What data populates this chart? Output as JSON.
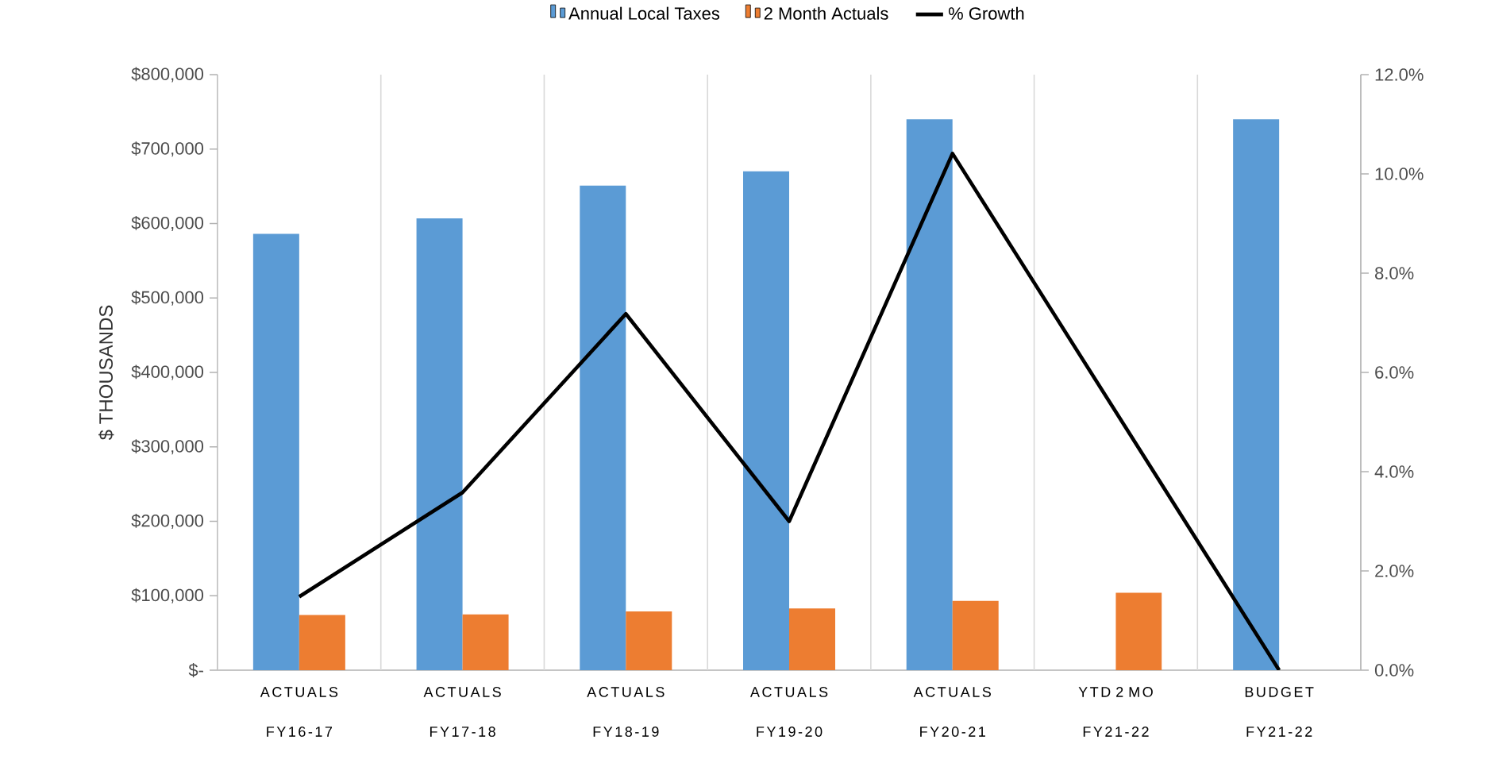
{
  "chart_data": {
    "type": "bar",
    "ylabel": "$ THOUSANDS",
    "categories": [
      "ACTUALS FY16-17",
      "ACTUALS FY17-18",
      "ACTUALS FY18-19",
      "ACTUALS FY19-20",
      "ACTUALS FY20-21",
      "YTD 2 MO FY21-22",
      "BUDGET FY21-22"
    ],
    "series": [
      {
        "name": "Annual Local Taxes",
        "color": "#5b9bd5",
        "values": [
          586000,
          607000,
          651000,
          670000,
          740000,
          null,
          740000
        ]
      },
      {
        "name": "2 Month Actuals",
        "color": "#ed7d31",
        "values": [
          74000,
          75000,
          79000,
          83000,
          93000,
          104000,
          null
        ]
      },
      {
        "name": "% Growth",
        "type": "line",
        "axis": "y2",
        "color": "#000000",
        "values": [
          1.48,
          3.58,
          7.18,
          3.0,
          10.41,
          null,
          0
        ]
      }
    ],
    "ylim": [
      0,
      800000
    ],
    "yticks": [
      {
        "value": 0,
        "label": "$-"
      },
      {
        "value": 100000,
        "label": "$100,000"
      },
      {
        "value": 200000,
        "label": "$200,000"
      },
      {
        "value": 300000,
        "label": "$300,000"
      },
      {
        "value": 400000,
        "label": "$400,000"
      },
      {
        "value": 500000,
        "label": "$500,000"
      },
      {
        "value": 600000,
        "label": "$600,000"
      },
      {
        "value": 700000,
        "label": "$700,000"
      },
      {
        "value": 800000,
        "label": "$800,000"
      }
    ],
    "y2lim": [
      0,
      12
    ],
    "y2ticks": [
      {
        "value": 0,
        "label": "0.0%"
      },
      {
        "value": 2,
        "label": "2.0%"
      },
      {
        "value": 4,
        "label": "4.0%"
      },
      {
        "value": 6,
        "label": "6.0%"
      },
      {
        "value": 8,
        "label": "8.0%"
      },
      {
        "value": 10,
        "label": "10.0%"
      },
      {
        "value": 12,
        "label": "12.0%"
      }
    ],
    "grid": "x",
    "legend": "top"
  }
}
